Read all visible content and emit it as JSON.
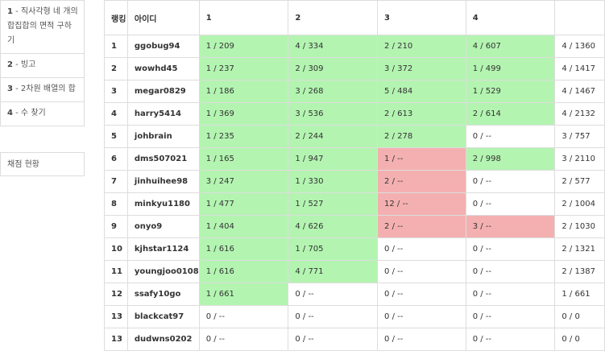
{
  "sidebar": {
    "problems": [
      {
        "num": "1",
        "title": " - 직사각형 네 개의 합집합의 면적 구하기"
      },
      {
        "num": "2",
        "title": " - 빙고"
      },
      {
        "num": "3",
        "title": " - 2차원 배열의 합"
      },
      {
        "num": "4",
        "title": " - 수 찾기"
      }
    ],
    "status_label": "채점 현황"
  },
  "table": {
    "headers": {
      "rank": "랭킹",
      "user": "아이디",
      "p1": "1",
      "p2": "2",
      "p3": "3",
      "p4": "4",
      "total": ""
    },
    "colors": {
      "solved": "#b3f4b1",
      "wrong": "#f4b0b0",
      "none": "#ffffff"
    },
    "rows": [
      {
        "rank": "1",
        "user": "ggobug94",
        "cells": [
          {
            "text": "1 / 209",
            "status": "solved"
          },
          {
            "text": "4 / 334",
            "status": "solved"
          },
          {
            "text": "2 / 210",
            "status": "solved"
          },
          {
            "text": "4 / 607",
            "status": "solved"
          }
        ],
        "total": "4 / 1360"
      },
      {
        "rank": "2",
        "user": "wowhd45",
        "cells": [
          {
            "text": "1 / 237",
            "status": "solved"
          },
          {
            "text": "2 / 309",
            "status": "solved"
          },
          {
            "text": "3 / 372",
            "status": "solved"
          },
          {
            "text": "1 / 499",
            "status": "solved"
          }
        ],
        "total": "4 / 1417"
      },
      {
        "rank": "3",
        "user": "megar0829",
        "cells": [
          {
            "text": "1 / 186",
            "status": "solved"
          },
          {
            "text": "3 / 268",
            "status": "solved"
          },
          {
            "text": "5 / 484",
            "status": "solved"
          },
          {
            "text": "1 / 529",
            "status": "solved"
          }
        ],
        "total": "4 / 1467"
      },
      {
        "rank": "4",
        "user": "harry5414",
        "cells": [
          {
            "text": "1 / 369",
            "status": "solved"
          },
          {
            "text": "3 / 536",
            "status": "solved"
          },
          {
            "text": "2 / 613",
            "status": "solved"
          },
          {
            "text": "2 / 614",
            "status": "solved"
          }
        ],
        "total": "4 / 2132"
      },
      {
        "rank": "5",
        "user": "johbrain",
        "cells": [
          {
            "text": "1 / 235",
            "status": "solved"
          },
          {
            "text": "2 / 244",
            "status": "solved"
          },
          {
            "text": "2 / 278",
            "status": "solved"
          },
          {
            "text": "0 / --",
            "status": "none"
          }
        ],
        "total": "3 / 757"
      },
      {
        "rank": "6",
        "user": "dms507021",
        "cells": [
          {
            "text": "1 / 165",
            "status": "solved"
          },
          {
            "text": "1 / 947",
            "status": "solved"
          },
          {
            "text": "1 / --",
            "status": "wrong"
          },
          {
            "text": "2 / 998",
            "status": "solved"
          }
        ],
        "total": "3 / 2110"
      },
      {
        "rank": "7",
        "user": "jinhuihee98",
        "cells": [
          {
            "text": "3 / 247",
            "status": "solved"
          },
          {
            "text": "1 / 330",
            "status": "solved"
          },
          {
            "text": "2 / --",
            "status": "wrong"
          },
          {
            "text": "0 / --",
            "status": "none"
          }
        ],
        "total": "2 / 577"
      },
      {
        "rank": "8",
        "user": "minkyu1180",
        "cells": [
          {
            "text": "1 / 477",
            "status": "solved"
          },
          {
            "text": "1 / 527",
            "status": "solved"
          },
          {
            "text": "12 / --",
            "status": "wrong"
          },
          {
            "text": "0 / --",
            "status": "none"
          }
        ],
        "total": "2 / 1004"
      },
      {
        "rank": "9",
        "user": "onyo9",
        "cells": [
          {
            "text": "1 / 404",
            "status": "solved"
          },
          {
            "text": "4 / 626",
            "status": "solved"
          },
          {
            "text": "2 / --",
            "status": "wrong"
          },
          {
            "text": "3 / --",
            "status": "wrong"
          }
        ],
        "total": "2 / 1030"
      },
      {
        "rank": "10",
        "user": "kjhstar1124",
        "cells": [
          {
            "text": "1 / 616",
            "status": "solved"
          },
          {
            "text": "1 / 705",
            "status": "solved"
          },
          {
            "text": "0 / --",
            "status": "none"
          },
          {
            "text": "0 / --",
            "status": "none"
          }
        ],
        "total": "2 / 1321"
      },
      {
        "rank": "11",
        "user": "youngjoo0108",
        "cells": [
          {
            "text": "1 / 616",
            "status": "solved"
          },
          {
            "text": "4 / 771",
            "status": "solved"
          },
          {
            "text": "0 / --",
            "status": "none"
          },
          {
            "text": "0 / --",
            "status": "none"
          }
        ],
        "total": "2 / 1387"
      },
      {
        "rank": "12",
        "user": "ssafy10go",
        "cells": [
          {
            "text": "1 / 661",
            "status": "solved"
          },
          {
            "text": "0 / --",
            "status": "none"
          },
          {
            "text": "0 / --",
            "status": "none"
          },
          {
            "text": "0 / --",
            "status": "none"
          }
        ],
        "total": "1 / 661"
      },
      {
        "rank": "13",
        "user": "blackcat97",
        "cells": [
          {
            "text": "0 / --",
            "status": "none"
          },
          {
            "text": "0 / --",
            "status": "none"
          },
          {
            "text": "0 / --",
            "status": "none"
          },
          {
            "text": "0 / --",
            "status": "none"
          }
        ],
        "total": "0 / 0"
      },
      {
        "rank": "13",
        "user": "dudwns0202",
        "cells": [
          {
            "text": "0 / --",
            "status": "none"
          },
          {
            "text": "0 / --",
            "status": "none"
          },
          {
            "text": "0 / --",
            "status": "none"
          },
          {
            "text": "0 / --",
            "status": "none"
          }
        ],
        "total": "0 / 0"
      }
    ]
  }
}
